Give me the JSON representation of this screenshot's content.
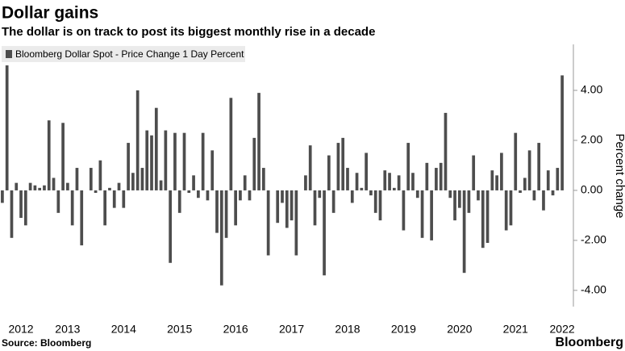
{
  "chart_data": {
    "type": "bar",
    "title": "Dollar gains",
    "subtitle": "The dollar is on track to post its biggest monthly rise in a decade",
    "y_label": "Percent change",
    "source": "Source: Bloomberg",
    "brand": "Bloomberg",
    "categories": [
      null,
      null,
      null,
      null,
      "2012",
      null,
      null,
      null,
      null,
      null,
      null,
      null,
      null,
      null,
      "2013",
      null,
      null,
      null,
      null,
      null,
      null,
      null,
      null,
      null,
      null,
      null,
      "2014",
      null,
      null,
      null,
      null,
      null,
      null,
      null,
      null,
      null,
      null,
      null,
      "2015",
      null,
      null,
      null,
      null,
      null,
      null,
      null,
      null,
      null,
      null,
      null,
      "2016",
      null,
      null,
      null,
      null,
      null,
      null,
      null,
      null,
      null,
      null,
      null,
      "2017",
      null,
      null,
      null,
      null,
      null,
      null,
      null,
      null,
      null,
      null,
      null,
      "2018",
      null,
      null,
      null,
      null,
      null,
      null,
      null,
      null,
      null,
      null,
      null,
      "2019",
      null,
      null,
      null,
      null,
      null,
      null,
      null,
      null,
      null,
      null,
      null,
      "2020",
      null,
      null,
      null,
      null,
      null,
      null,
      null,
      null,
      null,
      null,
      null,
      "2021",
      null,
      null,
      null,
      null,
      null,
      null,
      null,
      null,
      null,
      "2022"
    ],
    "series": [
      {
        "name": "Bloomberg Dollar Spot - Price Change 1 Day Percent",
        "color": "#4d4d4d",
        "values": [
          -0.5,
          5.0,
          -1.9,
          0.3,
          -1.1,
          -1.4,
          0.3,
          0.2,
          0.1,
          0.2,
          2.8,
          0.5,
          -0.9,
          2.7,
          0.3,
          -1.4,
          0.9,
          -2.2,
          0.0,
          0.9,
          -0.1,
          1.2,
          -1.4,
          0.1,
          -0.7,
          0.3,
          -0.7,
          1.9,
          0.7,
          4.0,
          0.9,
          2.4,
          2.2,
          3.3,
          0.4,
          2.4,
          -2.9,
          2.3,
          -0.9,
          2.3,
          -0.1,
          0.6,
          -0.3,
          2.3,
          -0.4,
          1.6,
          -1.7,
          -3.8,
          -1.9,
          3.7,
          -1.4,
          -0.4,
          0.6,
          -0.4,
          2.1,
          3.9,
          0.9,
          -2.6,
          0.0,
          -1.3,
          -0.5,
          -1.5,
          -1.2,
          -2.6,
          0.0,
          0.6,
          1.8,
          -1.4,
          -0.3,
          -3.4,
          1.4,
          -0.9,
          1.9,
          2.1,
          0.9,
          -0.5,
          0.7,
          0.1,
          1.5,
          -0.2,
          -0.9,
          -1.2,
          0.8,
          0.7,
          0.1,
          0.6,
          -1.6,
          1.9,
          0.7,
          -0.3,
          -1.9,
          1.1,
          -2.0,
          0.9,
          1.1,
          3.1,
          -0.3,
          -1.2,
          -0.7,
          -3.3,
          -0.9,
          1.4,
          -0.4,
          -2.3,
          -2.1,
          0.8,
          0.6,
          1.5,
          -1.6,
          -1.4,
          2.3,
          -0.1,
          0.5,
          1.6,
          -0.4,
          1.9,
          -0.8,
          0.8,
          -0.2,
          0.9,
          4.6
        ]
      }
    ],
    "ylim": [
      -4.65,
      5.84
    ],
    "yticks": [
      {
        "value": -4,
        "label": "-4.00"
      },
      {
        "value": -2,
        "label": "-2.00"
      },
      {
        "value": 0,
        "label": "0.00"
      },
      {
        "value": 2,
        "label": "2.00"
      },
      {
        "value": 4,
        "label": "4.00"
      }
    ],
    "y_axis_side": "right",
    "grid": false
  }
}
